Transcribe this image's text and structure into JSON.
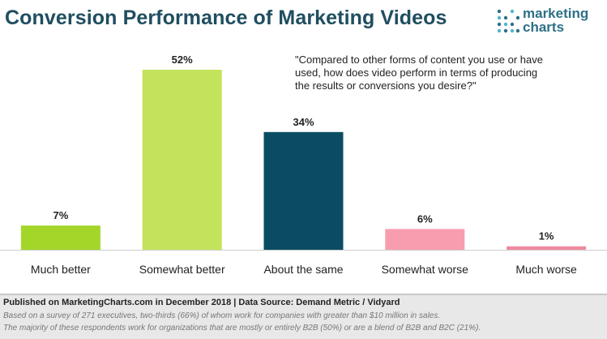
{
  "title": "Conversion Performance of Marketing Videos",
  "logo": {
    "line1": "marketing",
    "line2": "charts"
  },
  "question": "\"Compared to other forms of content you use or have used, how does video perform in terms of producing the results or conversions you desire?\"",
  "chart_data": {
    "type": "bar",
    "categories": [
      "Much better",
      "Somewhat better",
      "About the same",
      "Somewhat worse",
      "Much worse"
    ],
    "values": [
      7,
      52,
      34,
      6,
      1
    ],
    "value_labels": [
      "7%",
      "52%",
      "34%",
      "6%",
      "1%"
    ],
    "colors": [
      "#a4d62a",
      "#c4e35c",
      "#0b4c63",
      "#f79daf",
      "#ee8aa0"
    ],
    "ylim": [
      0,
      52
    ],
    "grid": false,
    "legend": "none"
  },
  "footer": {
    "source": "Published on MarketingCharts.com in December 2018 | Data Source: Demand Metric / Vidyard",
    "note1": "Based on a survey of 271 executives, two-thirds (66%) of whom work for companies with greater than $10 million in sales.",
    "note2": "The majority of these respondents work for organizations that are mostly or entirely B2B (50%) or are a blend of B2B and B2C (21%)."
  }
}
